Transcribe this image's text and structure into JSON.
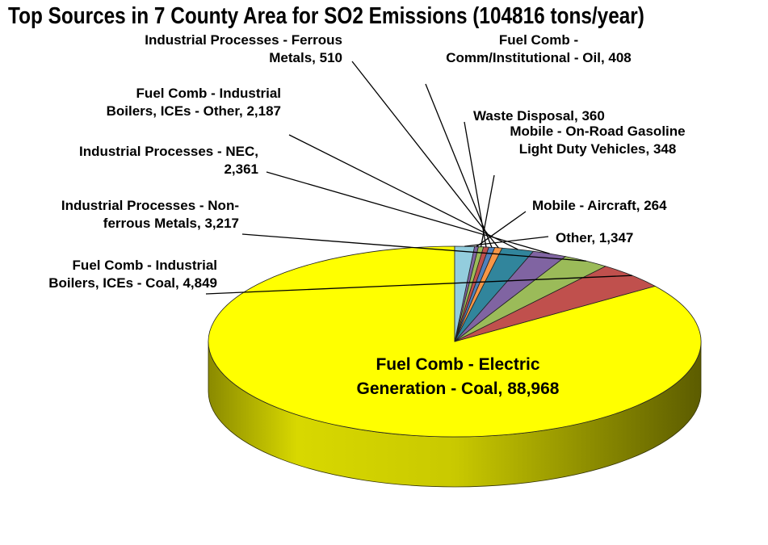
{
  "chart_data": {
    "type": "pie",
    "title": "Top Sources in 7 County Area for SO2 Emissions  (104816 tons/year)",
    "slices": [
      {
        "label": "Fuel Comb - Electric Generation - Coal",
        "display_lines": [
          "Fuel Comb - Electric",
          "Generation - Coal,  88,968"
        ],
        "value": 88968,
        "color": "#FFFF00"
      },
      {
        "label": "Fuel Comb - Industrial Boilers, ICEs - Coal",
        "display_lines": [
          "Fuel Comb - Industrial",
          "Boilers, ICEs - Coal,  4,849"
        ],
        "value": 4849,
        "color": "#C0504D"
      },
      {
        "label": "Industrial Processes - Non-ferrous Metals",
        "display_lines": [
          "Industrial Processes - Non-",
          "ferrous Metals,  3,217"
        ],
        "value": 3217,
        "color": "#9BBB59"
      },
      {
        "label": "Industrial Processes - NEC",
        "display_lines": [
          "Industrial Processes - NEC,",
          "2,361"
        ],
        "value": 2361,
        "color": "#8064A2"
      },
      {
        "label": "Fuel Comb - Industrial Boilers, ICEs - Other",
        "display_lines": [
          "Fuel Comb - Industrial",
          "Boilers, ICEs - Other,  2,187"
        ],
        "value": 2187,
        "color": "#31859C"
      },
      {
        "label": "Industrial Processes - Ferrous Metals",
        "display_lines": [
          "Industrial Processes - Ferrous",
          "Metals,  510"
        ],
        "value": 510,
        "color": "#F79646"
      },
      {
        "label": "Fuel Comb - Comm/Institutional - Oil",
        "display_lines": [
          "Fuel Comb -",
          "Comm/Institutional - Oil,  408"
        ],
        "value": 408,
        "color": "#4F81BD"
      },
      {
        "label": "Waste Disposal",
        "display_lines": [
          "Waste Disposal,  360"
        ],
        "value": 360,
        "color": "#C0504D"
      },
      {
        "label": "Mobile - On-Road Gasoline Light Duty Vehicles",
        "display_lines": [
          "Mobile - On-Road Gasoline",
          "Light Duty Vehicles,  348"
        ],
        "value": 348,
        "color": "#9BBB59"
      },
      {
        "label": "Mobile - Aircraft",
        "display_lines": [
          "Mobile - Aircraft,  264"
        ],
        "value": 264,
        "color": "#8064A2"
      },
      {
        "label": "Other",
        "display_lines": [
          "Other,  1,347"
        ],
        "value": 1347,
        "color": "#93CDDD"
      }
    ],
    "total": 104816,
    "units": "tons/year",
    "legend": "none",
    "style": "3d-pie"
  }
}
